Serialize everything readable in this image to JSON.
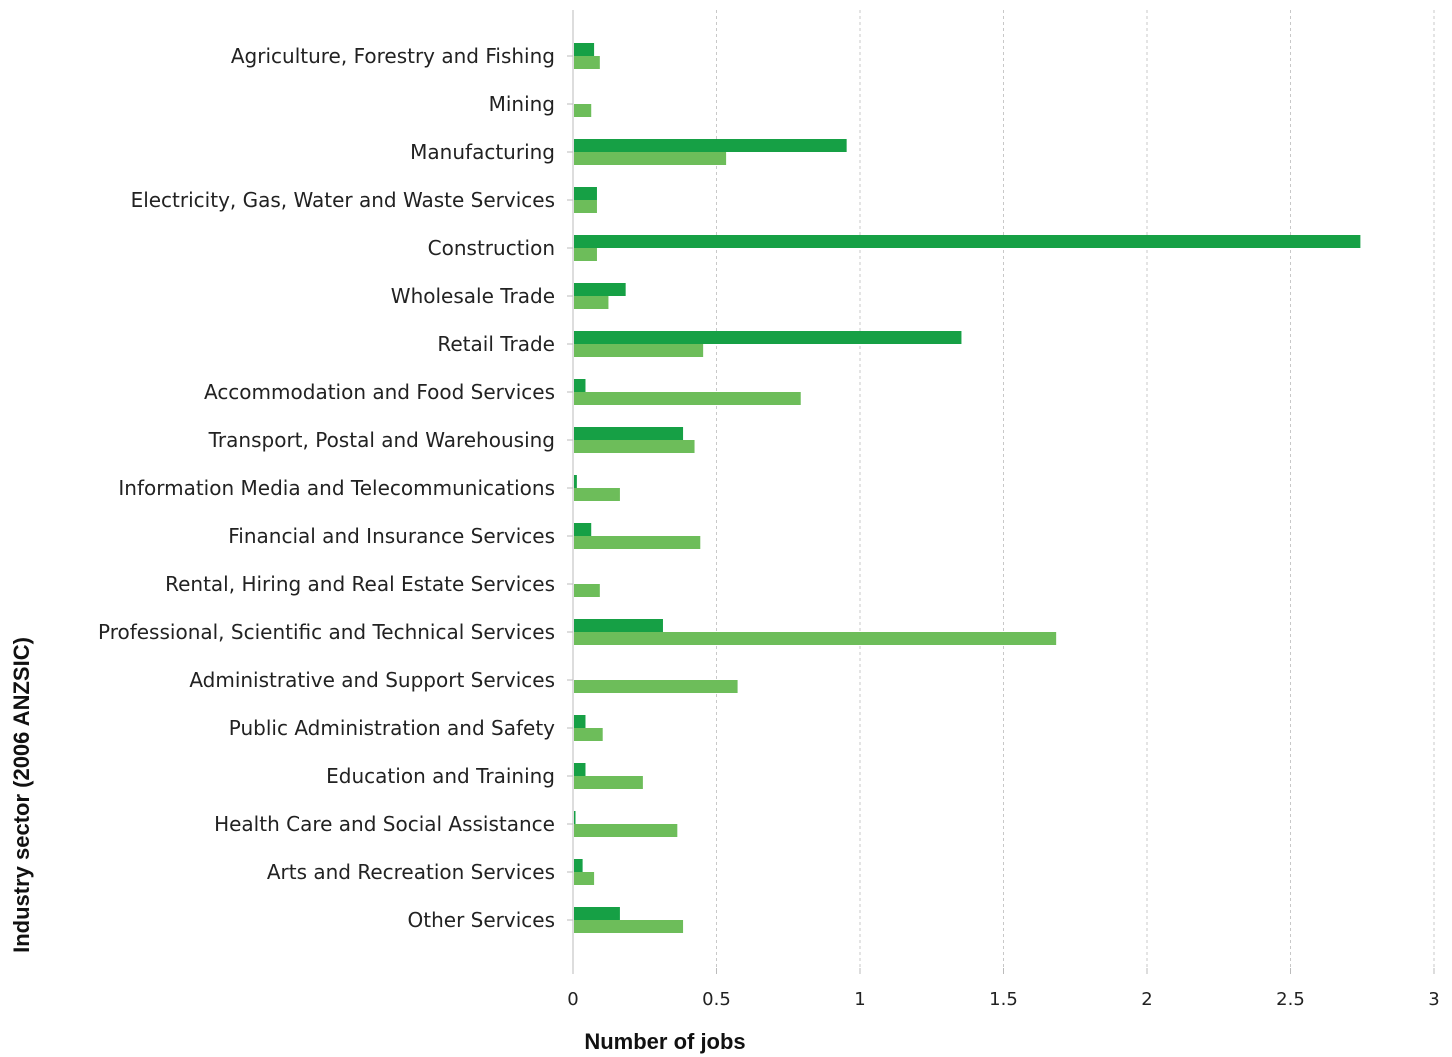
{
  "chart_data": {
    "type": "bar",
    "orientation": "horizontal",
    "xlabel": "Number of jobs",
    "ylabel": "Industry sector (2006 ANZSIC)",
    "xlim": [
      0,
      3
    ],
    "x_ticks": [
      "0",
      "0.5",
      "1",
      "1.5",
      "2",
      "2.5",
      "3"
    ],
    "x_tick_values": [
      0,
      0.5,
      1,
      1.5,
      2,
      2.5,
      3
    ],
    "grid": "vertical dashed",
    "legend": "none",
    "categories": [
      "Agriculture, Forestry and Fishing",
      "Mining",
      "Manufacturing",
      "Electricity, Gas, Water and Waste Services",
      "Construction",
      "Wholesale Trade",
      "Retail Trade",
      "Accommodation and Food Services",
      "Transport, Postal and Warehousing",
      "Information Media and Telecommunications",
      "Financial and Insurance Services",
      "Rental, Hiring and Real Estate Services",
      "Professional, Scientific and Technical Services",
      "Administrative and Support Services",
      "Public Administration and Safety",
      "Education and Training",
      "Health Care and Social Assistance",
      "Arts and Recreation Services",
      "Other Services"
    ],
    "series": [
      {
        "color": "#16a045",
        "values": [
          0.07,
          0,
          0.95,
          0.08,
          2.74,
          0.18,
          1.35,
          0.04,
          0.38,
          0.01,
          0.06,
          0,
          0.31,
          0,
          0.04,
          0.04,
          0.005,
          0.03,
          0.16
        ]
      },
      {
        "color": "#6dbd5a",
        "values": [
          0.09,
          0.06,
          0.53,
          0.08,
          0.08,
          0.12,
          0.45,
          0.79,
          0.42,
          0.16,
          0.44,
          0.09,
          1.68,
          0.57,
          0.1,
          0.24,
          0.36,
          0.07,
          0.38
        ]
      }
    ]
  }
}
